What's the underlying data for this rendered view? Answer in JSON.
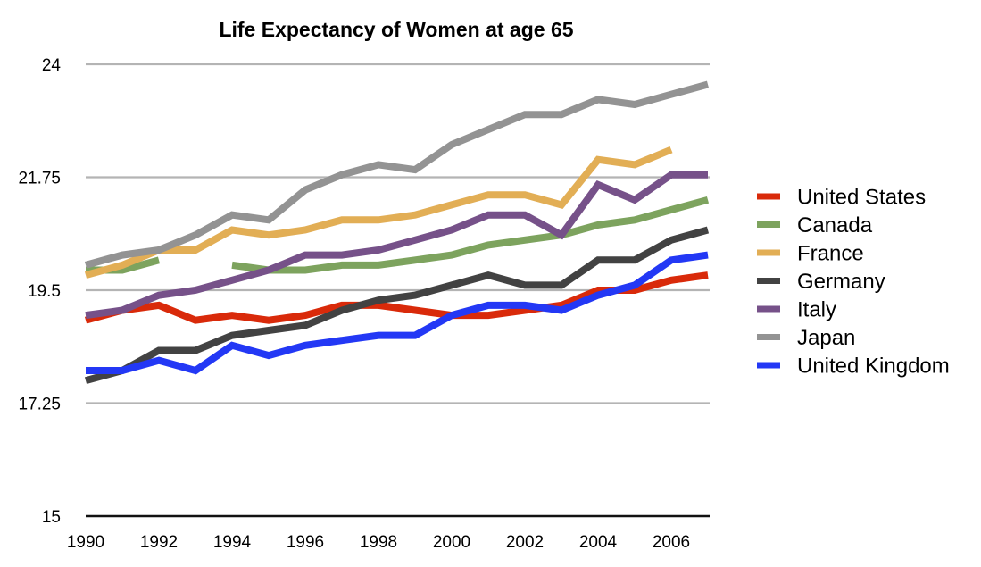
{
  "chart_data": {
    "type": "line",
    "title": "Life Expectancy of Women at age 65",
    "xlabel": "",
    "ylabel": "",
    "x": [
      1990,
      1991,
      1992,
      1993,
      1994,
      1995,
      1996,
      1997,
      1998,
      1999,
      2000,
      2001,
      2002,
      2003,
      2004,
      2005,
      2006,
      2007
    ],
    "x_tick_labels": [
      "1990",
      "1992",
      "1994",
      "1996",
      "1998",
      "2000",
      "2002",
      "2004",
      "2006"
    ],
    "y_tick_labels": [
      "15",
      "17.25",
      "19.5",
      "21.75",
      "24"
    ],
    "y_ticks": [
      15,
      17.25,
      19.5,
      21.75,
      24
    ],
    "ylim": [
      15,
      24
    ],
    "xlim": [
      1990,
      2007
    ],
    "grid": true,
    "legend_position": "right",
    "series": [
      {
        "name": "United States",
        "color": "#d92a0a",
        "values": [
          18.9,
          19.1,
          19.2,
          18.9,
          19.0,
          18.9,
          19.0,
          19.2,
          19.2,
          19.1,
          19.0,
          19.0,
          19.1,
          19.2,
          19.5,
          19.5,
          19.7,
          19.8
        ]
      },
      {
        "name": "Canada",
        "color": "#7da35e",
        "values": [
          19.9,
          19.9,
          20.1,
          null,
          20.0,
          19.9,
          19.9,
          20.0,
          20.0,
          20.1,
          20.2,
          20.4,
          20.5,
          20.6,
          20.8,
          20.9,
          21.1,
          21.3
        ]
      },
      {
        "name": "France",
        "color": "#e2ae55",
        "values": [
          19.8,
          20.0,
          20.3,
          20.3,
          20.7,
          20.6,
          20.7,
          20.9,
          20.9,
          21.0,
          21.2,
          21.4,
          21.4,
          21.2,
          22.1,
          22.0,
          22.3,
          null
        ]
      },
      {
        "name": "Germany",
        "color": "#424242",
        "values": [
          17.7,
          17.9,
          18.3,
          18.3,
          18.6,
          18.7,
          18.8,
          19.1,
          19.3,
          19.4,
          19.6,
          19.8,
          19.6,
          19.6,
          20.1,
          20.1,
          20.5,
          20.7
        ]
      },
      {
        "name": "Italy",
        "color": "#765189",
        "values": [
          19.0,
          19.1,
          19.4,
          19.5,
          19.7,
          19.9,
          20.2,
          20.2,
          20.3,
          20.5,
          20.7,
          21.0,
          21.0,
          20.6,
          21.6,
          21.3,
          21.8,
          21.8
        ]
      },
      {
        "name": "Japan",
        "color": "#939393",
        "values": [
          20.0,
          20.2,
          20.3,
          20.6,
          21.0,
          20.9,
          21.5,
          21.8,
          22.0,
          21.9,
          22.4,
          22.7,
          23.0,
          23.0,
          23.3,
          23.2,
          23.4,
          23.6
        ]
      },
      {
        "name": "United Kingdom",
        "color": "#2338f5",
        "values": [
          17.9,
          17.9,
          18.1,
          17.9,
          18.4,
          18.2,
          18.4,
          18.5,
          18.6,
          18.6,
          19.0,
          19.2,
          19.2,
          19.1,
          19.4,
          19.6,
          20.1,
          20.2
        ]
      }
    ]
  },
  "colors": {
    "gridline": "#b4b4b4",
    "axis": "#111111",
    "background": "#ffffff"
  }
}
